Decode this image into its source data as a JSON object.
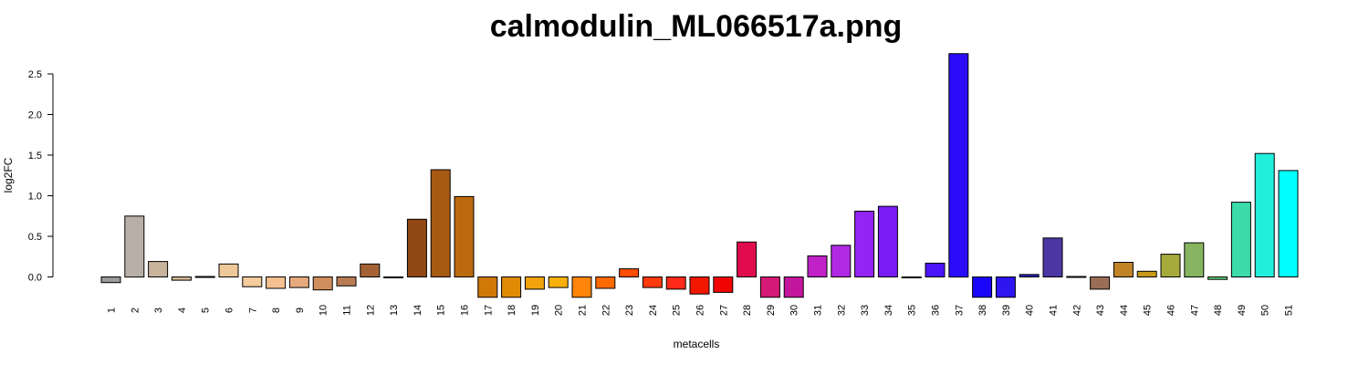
{
  "chart_data": {
    "type": "bar",
    "title": "calmodulin_ML066517a.png",
    "xlabel": "metacells",
    "ylabel": "log2FC",
    "ylim": [
      -0.25,
      2.75
    ],
    "yticks": [
      0.0,
      0.5,
      1.0,
      1.5,
      2.0,
      2.5
    ],
    "ytick_labels": [
      "0.0",
      "0.5",
      "1.0",
      "1.5",
      "2.0",
      "2.5"
    ],
    "grid": false,
    "legend": "none",
    "categories": [
      "1",
      "2",
      "3",
      "4",
      "5",
      "6",
      "7",
      "8",
      "9",
      "10",
      "11",
      "12",
      "13",
      "14",
      "15",
      "16",
      "17",
      "18",
      "19",
      "20",
      "21",
      "22",
      "23",
      "24",
      "25",
      "26",
      "27",
      "28",
      "29",
      "30",
      "31",
      "32",
      "33",
      "34",
      "35",
      "36",
      "37",
      "38",
      "39",
      "40",
      "41",
      "42",
      "43",
      "44",
      "45",
      "46",
      "47",
      "48",
      "49",
      "50",
      "51"
    ],
    "values": [
      -0.07,
      0.75,
      0.19,
      -0.04,
      0.0,
      0.16,
      -0.12,
      -0.14,
      -0.13,
      -0.16,
      -0.11,
      0.16,
      -0.01,
      0.71,
      1.32,
      0.99,
      -0.25,
      -0.25,
      -0.15,
      -0.13,
      -0.25,
      -0.14,
      0.1,
      -0.13,
      -0.15,
      -0.21,
      -0.19,
      0.43,
      -0.25,
      -0.25,
      0.26,
      0.39,
      0.81,
      0.87,
      -0.01,
      0.17,
      2.75,
      -0.25,
      -0.25,
      0.03,
      0.48,
      0.0,
      -0.15,
      0.18,
      0.07,
      0.28,
      0.42,
      -0.03,
      0.92,
      1.52,
      1.31
    ],
    "colors": [
      "#9a9a9a",
      "#b8b0a6",
      "#c8b49c",
      "#d4b896",
      "#dec098",
      "#eec898",
      "#f5cc9e",
      "#f5c090",
      "#e6aa7e",
      "#d08e5e",
      "#b87c52",
      "#a46234",
      "#985820",
      "#914812",
      "#a75a12",
      "#bc6a10",
      "#d07808",
      "#e08a06",
      "#f2a20a",
      "#f9b00c",
      "#ff8408",
      "#ff6a00",
      "#ff4e00",
      "#ff3a0c",
      "#ff2a1a",
      "#f21800",
      "#f10404",
      "#e00c4e",
      "#d41a76",
      "#c4169c",
      "#c022c8",
      "#b02ae4",
      "#9424f4",
      "#7a1cf4",
      "#6318f6",
      "#4a14f8",
      "#2a0cf8",
      "#1a06f8",
      "#2e16f0",
      "#2a22bc",
      "#4c36a4",
      "#7a4f6b",
      "#9a6e56",
      "#c08426",
      "#c89a18",
      "#a6aa3c",
      "#86b460",
      "#62d27c",
      "#3cdcaa",
      "#22eedc",
      "#00ffff"
    ]
  }
}
